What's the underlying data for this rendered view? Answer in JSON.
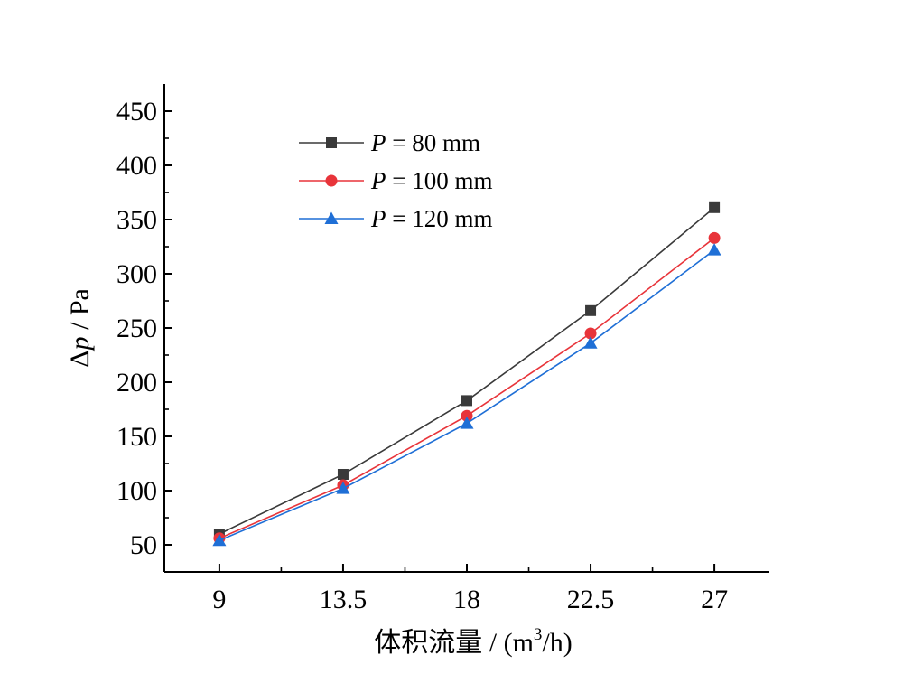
{
  "chart_data": {
    "type": "line",
    "x": [
      9,
      13.5,
      18,
      22.5,
      27
    ],
    "x_ticks": [
      "9",
      "13.5",
      "18",
      "22.5",
      "27"
    ],
    "xlim": [
      7,
      29
    ],
    "y_ticks": [
      "50",
      "100",
      "150",
      "200",
      "250",
      "300",
      "350",
      "400",
      "450"
    ],
    "ylim": [
      25,
      475
    ],
    "xlabel": {
      "main": "体积流量 / (m",
      "sup": "3",
      "tail": "/h)"
    },
    "ylabel": {
      "delta": "Δ",
      "var": "p",
      "unit": " / Pa"
    },
    "legend_position": "top-left",
    "series": [
      {
        "name_var": "P",
        "name_rest": " = 80 mm",
        "color": "#3a3a3a",
        "marker": "square",
        "values": [
          60,
          115,
          183,
          266,
          361
        ]
      },
      {
        "name_var": "P",
        "name_rest": " = 100 mm",
        "color": "#e8343a",
        "marker": "circle",
        "values": [
          56,
          105,
          169,
          245,
          333
        ]
      },
      {
        "name_var": "P",
        "name_rest": " = 120 mm",
        "color": "#1f6fd6",
        "marker": "triangle",
        "values": [
          54,
          102,
          162,
          236,
          322
        ]
      }
    ]
  }
}
